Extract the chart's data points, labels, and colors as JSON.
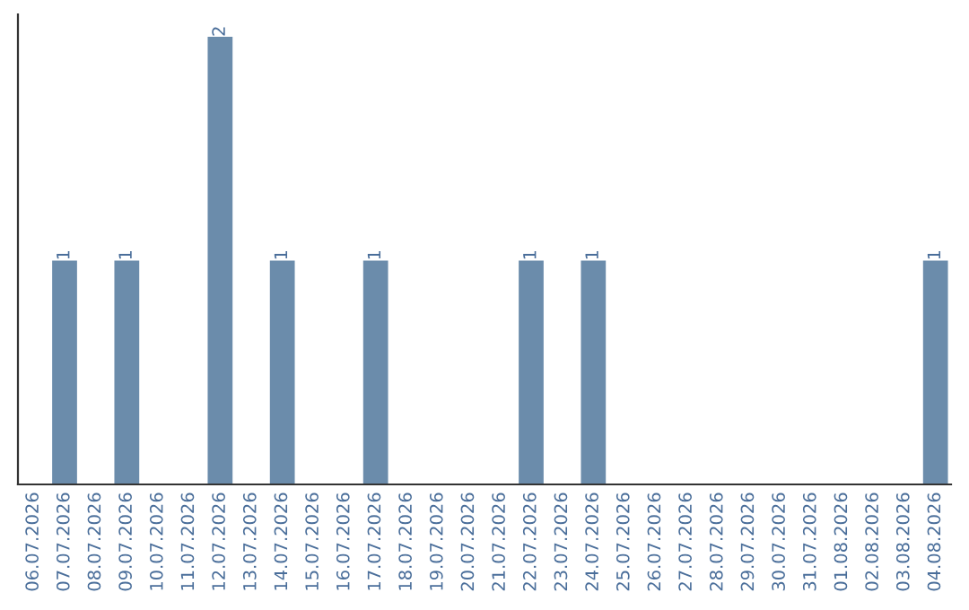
{
  "chart_data": {
    "type": "bar",
    "categories": [
      "06.07.2026",
      "07.07.2026",
      "08.07.2026",
      "09.07.2026",
      "10.07.2026",
      "11.07.2026",
      "12.07.2026",
      "13.07.2026",
      "14.07.2026",
      "15.07.2026",
      "16.07.2026",
      "17.07.2026",
      "18.07.2026",
      "19.07.2026",
      "20.07.2026",
      "21.07.2026",
      "22.07.2026",
      "23.07.2026",
      "24.07.2026",
      "25.07.2026",
      "26.07.2026",
      "27.07.2026",
      "28.07.2026",
      "29.07.2026",
      "30.07.2026",
      "31.07.2026",
      "01.08.2026",
      "02.08.2026",
      "03.08.2026",
      "04.08.2026"
    ],
    "values": [
      0,
      1,
      0,
      1,
      0,
      0,
      2,
      0,
      1,
      0,
      0,
      1,
      0,
      0,
      0,
      0,
      1,
      0,
      1,
      0,
      0,
      0,
      0,
      0,
      0,
      0,
      0,
      0,
      0,
      1
    ],
    "value_labels": [
      null,
      "1",
      null,
      "1",
      null,
      null,
      "2",
      null,
      "1",
      null,
      null,
      "1",
      null,
      null,
      null,
      null,
      "1",
      null,
      "1",
      null,
      null,
      null,
      null,
      null,
      null,
      null,
      null,
      null,
      null,
      "1"
    ],
    "color": "#6b8cab",
    "ylim": [
      0,
      2.1
    ],
    "tick_labels": "x",
    "grid": false
  }
}
